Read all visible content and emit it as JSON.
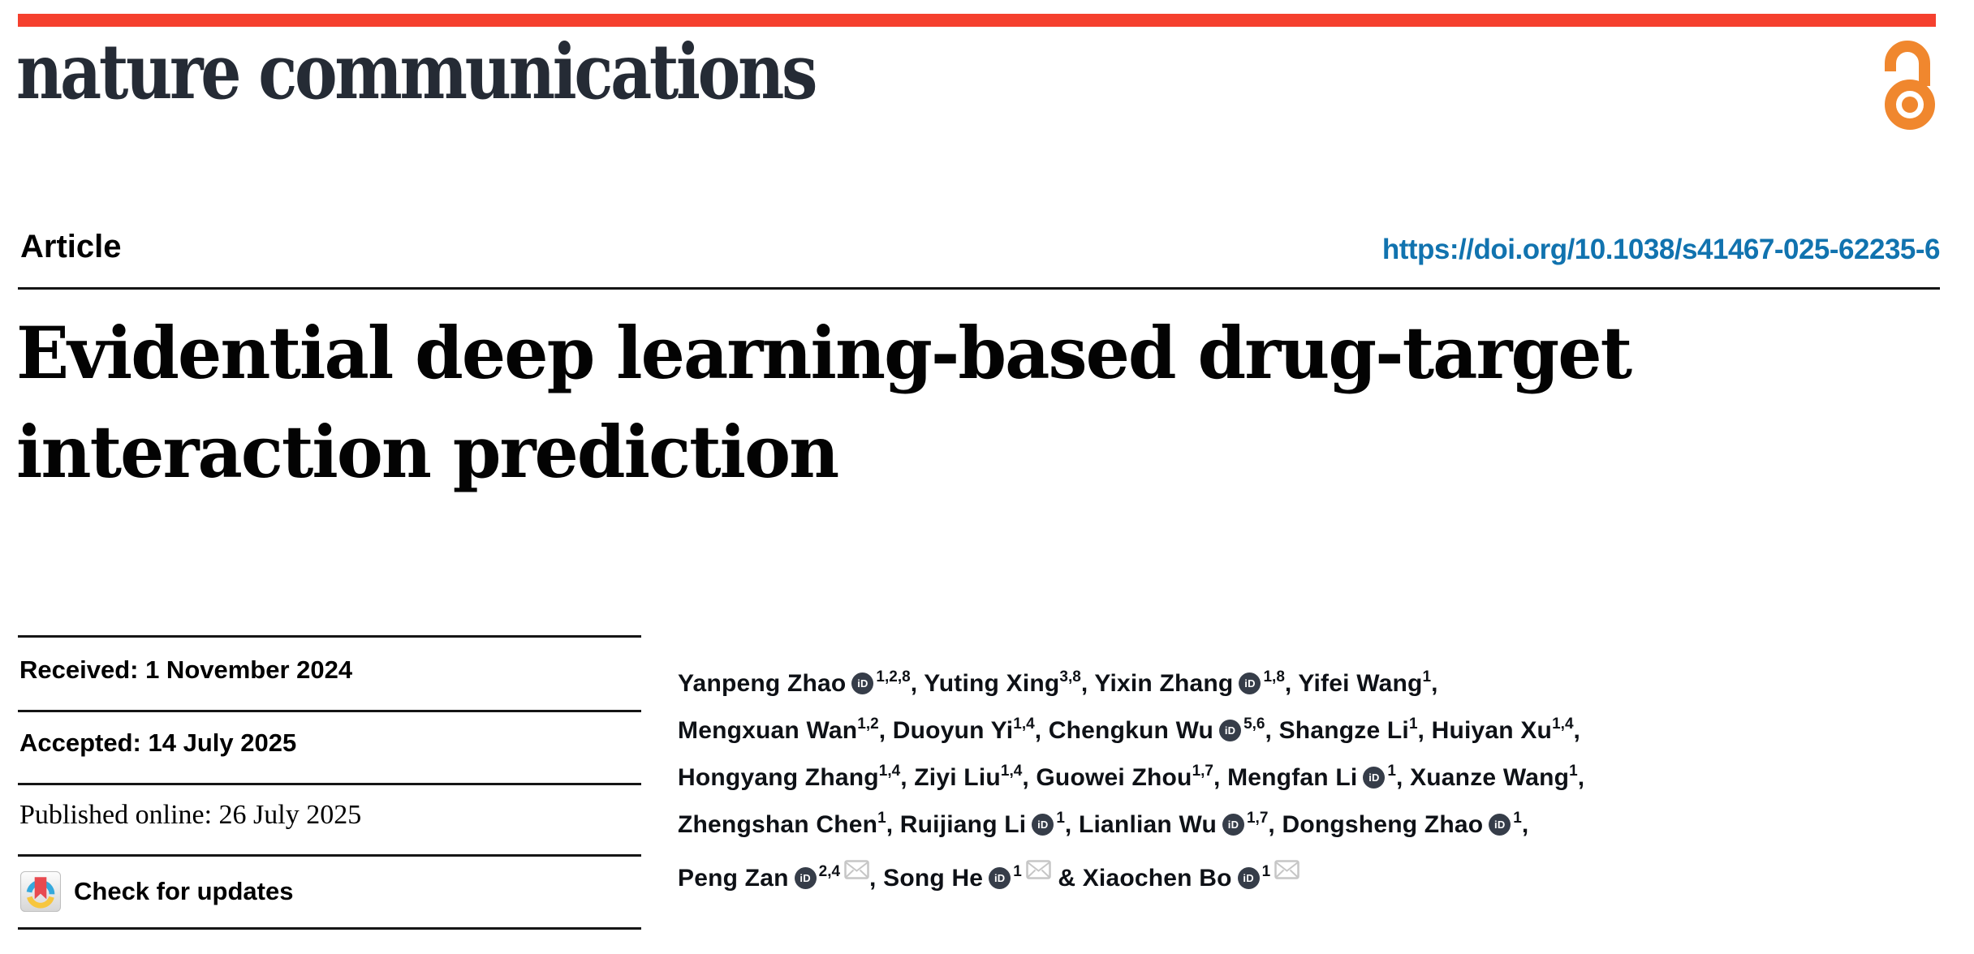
{
  "masthead": {
    "bar_color": "#f5402e",
    "journal_name": "nature communications",
    "open_access_color": "#f0872e"
  },
  "article_header": {
    "kicker": "Article",
    "doi": "https://doi.org/10.1038/s41467-025-62235-6",
    "doi_color": "#1173af",
    "title_line1": "Evidential deep learning-based drug-target",
    "title_line2": "interaction prediction"
  },
  "meta_panel": {
    "received": "Received: 1 November 2024",
    "accepted": "Accepted: 14 July 2025",
    "published": "Published online: 26 July 2025",
    "check_updates_label": "Check for updates"
  },
  "icons": {
    "orcid_glyph": "iD",
    "crossmark_colors": {
      "blue": "#35a9dd",
      "yellow": "#f7c63e",
      "red": "#e84a50"
    },
    "mail_color": "#c6c6c6"
  },
  "authors": {
    "list": [
      {
        "name": "Yanpeng Zhao",
        "orcid": true,
        "sup": "1,2,8",
        "mail": false,
        "sep": ", ",
        "break_after": false
      },
      {
        "name": "Yuting Xing",
        "orcid": false,
        "sup": "3,8",
        "mail": false,
        "sep": ", ",
        "break_after": false
      },
      {
        "name": "Yixin Zhang",
        "orcid": true,
        "sup": "1,8",
        "mail": false,
        "sep": ", ",
        "break_after": false
      },
      {
        "name": "Yifei Wang",
        "orcid": false,
        "sup": "1",
        "mail": false,
        "sep": ", ",
        "break_after": true
      },
      {
        "name": "Mengxuan Wan",
        "orcid": false,
        "sup": "1,2",
        "mail": false,
        "sep": ", ",
        "break_after": false
      },
      {
        "name": "Duoyun Yi",
        "orcid": false,
        "sup": "1,4",
        "mail": false,
        "sep": ", ",
        "break_after": false
      },
      {
        "name": "Chengkun Wu",
        "orcid": true,
        "sup": "5,6",
        "mail": false,
        "sep": ", ",
        "break_after": false
      },
      {
        "name": "Shangze Li",
        "orcid": false,
        "sup": "1",
        "mail": false,
        "sep": ", ",
        "break_after": false
      },
      {
        "name": "Huiyan Xu",
        "orcid": false,
        "sup": "1,4",
        "mail": false,
        "sep": ", ",
        "break_after": true
      },
      {
        "name": "Hongyang Zhang",
        "orcid": false,
        "sup": "1,4",
        "mail": false,
        "sep": ", ",
        "break_after": false
      },
      {
        "name": "Ziyi Liu",
        "orcid": false,
        "sup": "1,4",
        "mail": false,
        "sep": ", ",
        "break_after": false
      },
      {
        "name": "Guowei Zhou",
        "orcid": false,
        "sup": "1,7",
        "mail": false,
        "sep": ", ",
        "break_after": false
      },
      {
        "name": "Mengfan Li",
        "orcid": true,
        "sup": "1",
        "mail": false,
        "sep": ", ",
        "break_after": false
      },
      {
        "name": "Xuanze Wang",
        "orcid": false,
        "sup": "1",
        "mail": false,
        "sep": ", ",
        "break_after": true
      },
      {
        "name": "Zhengshan Chen",
        "orcid": false,
        "sup": "1",
        "mail": false,
        "sep": ", ",
        "break_after": false
      },
      {
        "name": "Ruijiang Li",
        "orcid": true,
        "sup": "1",
        "mail": false,
        "sep": ", ",
        "break_after": false
      },
      {
        "name": "Lianlian Wu",
        "orcid": true,
        "sup": "1,7",
        "mail": false,
        "sep": ", ",
        "break_after": false
      },
      {
        "name": "Dongsheng Zhao",
        "orcid": true,
        "sup": "1",
        "mail": false,
        "sep": ", ",
        "break_after": true
      },
      {
        "name": "Peng Zan",
        "orcid": true,
        "sup": "2,4",
        "mail": true,
        "sep": ", ",
        "break_after": false
      },
      {
        "name": "Song He",
        "orcid": true,
        "sup": "1",
        "mail": true,
        "sep": " & ",
        "break_after": false
      },
      {
        "name": "Xiaochen Bo",
        "orcid": true,
        "sup": "1",
        "mail": true,
        "sep": "",
        "break_after": false
      }
    ]
  }
}
